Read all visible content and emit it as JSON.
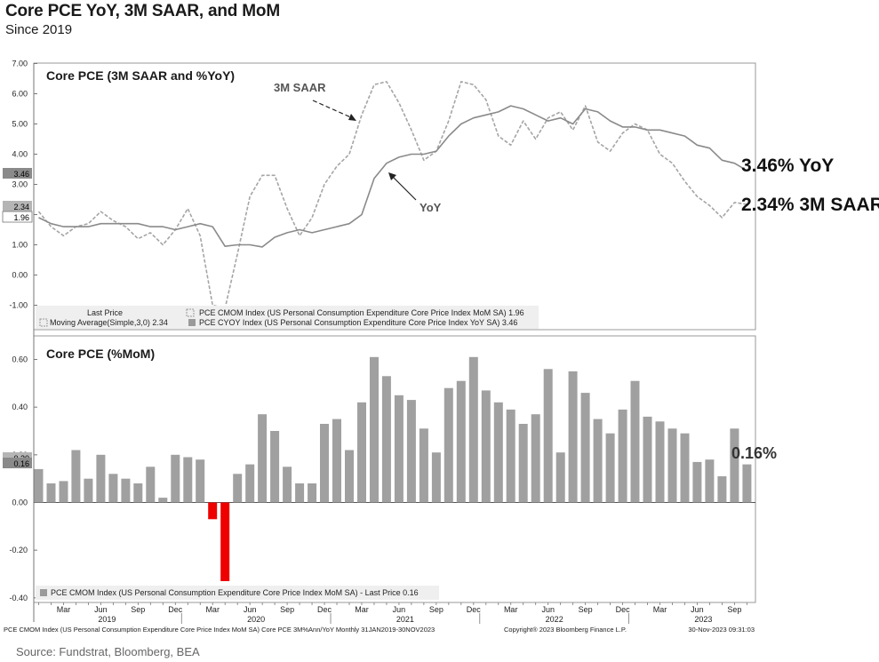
{
  "header": {
    "title": "Core PCE YoY, 3M SAAR, and MoM",
    "subtitle": "Since 2019"
  },
  "source": "Source: Fundstrat, Bloomberg, BEA",
  "colors": {
    "yoy": "#8a8a8a",
    "saar": "#a5a5a5",
    "bar": "#a0a0a0",
    "negative_bar": "#ee0000"
  },
  "chart_data": [
    {
      "type": "line",
      "title": "Core PCE (3M SAAR and %YoY)",
      "ylim": [
        -1.0,
        7.0
      ],
      "yticks": [
        "7.00",
        "6.00",
        "5.00",
        "4.00",
        "3.00",
        "2.00",
        "1.00",
        "0.00",
        "-1.00"
      ],
      "x": [
        "Jan 2019",
        "Feb 2019",
        "Mar 2019",
        "Apr 2019",
        "May 2019",
        "Jun 2019",
        "Jul 2019",
        "Aug 2019",
        "Sep 2019",
        "Oct 2019",
        "Nov 2019",
        "Dec 2019",
        "Jan 2020",
        "Feb 2020",
        "Mar 2020",
        "Apr 2020",
        "May 2020",
        "Jun 2020",
        "Jul 2020",
        "Aug 2020",
        "Sep 2020",
        "Oct 2020",
        "Nov 2020",
        "Dec 2020",
        "Jan 2021",
        "Feb 2021",
        "Mar 2021",
        "Apr 2021",
        "May 2021",
        "Jun 2021",
        "Jul 2021",
        "Aug 2021",
        "Sep 2021",
        "Oct 2021",
        "Nov 2021",
        "Dec 2021",
        "Jan 2022",
        "Feb 2022",
        "Mar 2022",
        "Apr 2022",
        "May 2022",
        "Jun 2022",
        "Jul 2022",
        "Aug 2022",
        "Sep 2022",
        "Oct 2022",
        "Nov 2022",
        "Dec 2022",
        "Jan 2023",
        "Feb 2023",
        "Mar 2023",
        "Apr 2023",
        "May 2023",
        "Jun 2023",
        "Jul 2023",
        "Aug 2023",
        "Sep 2023",
        "Oct 2023"
      ],
      "series": [
        {
          "name": "3M SAAR",
          "style": "dashed",
          "values": [
            2.1,
            1.6,
            1.3,
            1.6,
            1.7,
            2.1,
            1.8,
            1.6,
            1.2,
            1.4,
            1.0,
            1.5,
            2.2,
            1.3,
            -1.0,
            -1.1,
            0.7,
            2.6,
            3.3,
            3.3,
            2.2,
            1.3,
            1.9,
            3.0,
            3.6,
            4.0,
            5.3,
            6.3,
            6.4,
            5.7,
            4.8,
            3.8,
            4.1,
            5.1,
            6.4,
            6.3,
            5.8,
            4.6,
            4.3,
            5.1,
            4.5,
            5.2,
            5.4,
            4.8,
            5.6,
            4.4,
            4.1,
            4.7,
            5.0,
            4.8,
            4.0,
            3.7,
            3.1,
            2.6,
            2.3,
            1.9,
            2.4,
            2.34
          ]
        },
        {
          "name": "YoY",
          "style": "solid",
          "values": [
            1.9,
            1.7,
            1.6,
            1.6,
            1.6,
            1.7,
            1.7,
            1.7,
            1.7,
            1.6,
            1.6,
            1.5,
            1.6,
            1.7,
            1.6,
            0.95,
            1.0,
            1.0,
            0.93,
            1.25,
            1.4,
            1.5,
            1.4,
            1.5,
            1.6,
            1.7,
            2.0,
            3.2,
            3.7,
            3.9,
            4.0,
            4.0,
            4.1,
            4.6,
            5.0,
            5.2,
            5.3,
            5.4,
            5.6,
            5.5,
            5.3,
            5.1,
            5.2,
            5.0,
            5.5,
            5.4,
            5.1,
            4.9,
            4.9,
            4.8,
            4.8,
            4.7,
            4.6,
            4.3,
            4.2,
            3.8,
            3.7,
            3.46
          ]
        }
      ],
      "annotations": {
        "saar": "3M SAAR",
        "yoy": "YoY",
        "yoy_right": "3.46% YoY",
        "saar_right": "2.34% 3M SAAR"
      },
      "axis_value_boxes": [
        "3.46",
        "2.34",
        "1.96"
      ],
      "legend": {
        "header": "Last Price",
        "row1_left": "Moving Average(Simple,3,0)  2.34",
        "row1_right": "PCE CMOM Index  (US Personal Consumption Expenditure Core Price Index MoM SA)  1.96",
        "row2_right": "PCE CYOY Index  (US Personal Consumption Expenditure Core Price Index YoY SA)  3.46"
      }
    },
    {
      "type": "bar",
      "title": "Core PCE (%MoM)",
      "ylim": [
        -0.4,
        0.6
      ],
      "yticks": [
        "0.60",
        "0.40",
        "0.20",
        "0.00",
        "-0.20",
        "-0.40"
      ],
      "values": [
        0.14,
        0.08,
        0.09,
        0.22,
        0.1,
        0.2,
        0.12,
        0.1,
        0.08,
        0.15,
        0.02,
        0.2,
        0.19,
        0.18,
        -0.07,
        -0.33,
        0.12,
        0.16,
        0.37,
        0.3,
        0.15,
        0.08,
        0.08,
        0.33,
        0.35,
        0.22,
        0.42,
        0.61,
        0.53,
        0.45,
        0.43,
        0.31,
        0.21,
        0.48,
        0.51,
        0.61,
        0.47,
        0.42,
        0.39,
        0.33,
        0.37,
        0.56,
        0.21,
        0.55,
        0.46,
        0.35,
        0.29,
        0.39,
        0.51,
        0.36,
        0.34,
        0.31,
        0.29,
        0.17,
        0.18,
        0.11,
        0.31,
        0.16
      ],
      "axis_value_boxes": [
        "0.20",
        "0.16"
      ],
      "last_label": "0.16%",
      "legend": "PCE CMOM Index  (US Personal Consumption Expenditure Core Price Index MoM SA) - Last Price  0.16"
    }
  ],
  "x_axis": {
    "month_labels": [
      {
        "label": "Mar",
        "i": 2
      },
      {
        "label": "Jun",
        "i": 5
      },
      {
        "label": "Sep",
        "i": 8
      },
      {
        "label": "Dec",
        "i": 11
      },
      {
        "label": "Mar",
        "i": 14
      },
      {
        "label": "Jun",
        "i": 17
      },
      {
        "label": "Sep",
        "i": 20
      },
      {
        "label": "Dec",
        "i": 23
      },
      {
        "label": "Mar",
        "i": 26
      },
      {
        "label": "Jun",
        "i": 29
      },
      {
        "label": "Sep",
        "i": 32
      },
      {
        "label": "Dec",
        "i": 35
      },
      {
        "label": "Mar",
        "i": 38
      },
      {
        "label": "Jun",
        "i": 41
      },
      {
        "label": "Sep",
        "i": 44
      },
      {
        "label": "Dec",
        "i": 47
      },
      {
        "label": "Mar",
        "i": 50
      },
      {
        "label": "Jun",
        "i": 53
      },
      {
        "label": "Sep",
        "i": 56
      }
    ],
    "year_labels": [
      {
        "label": "2019",
        "i": 5.5
      },
      {
        "label": "2020",
        "i": 17.5
      },
      {
        "label": "2021",
        "i": 29.5
      },
      {
        "label": "2022",
        "i": 41.5
      },
      {
        "label": "2023",
        "i": 53.5
      }
    ]
  },
  "footer": {
    "left": "PCE CMOM Index (US Personal Consumption Expenditure Core Price Index MoM SA) Core PCE 3M%Ann/YoY  Monthly 31JAN2019-30NOV2023",
    "center": "Copyright® 2023 Bloomberg Finance L.P.",
    "right": "30-Nov-2023 09:31:03"
  }
}
